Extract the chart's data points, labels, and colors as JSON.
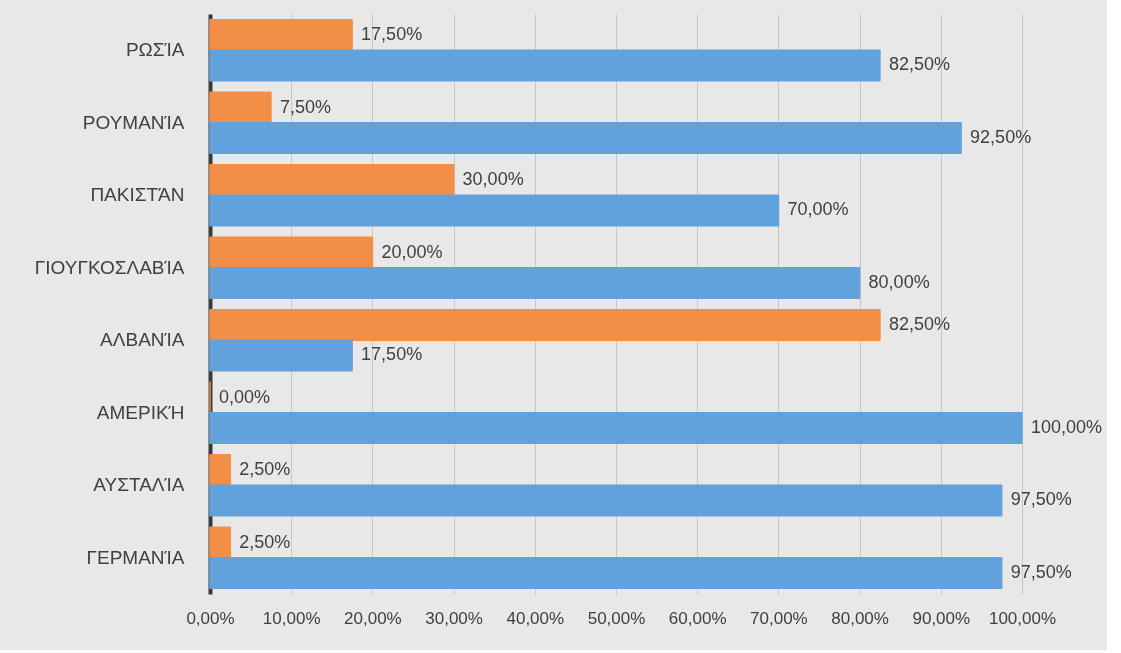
{
  "chart_data": {
    "type": "bar",
    "orientation": "horizontal",
    "categories": [
      "ΡΩΣΊΑ",
      "ΡΟΥΜΑΝΊΑ",
      "ΠΑΚΙΣΤΆΝ",
      "ΓΙΟΥΓΚΟΣΛΑΒΊΑ",
      "ΑΛΒΑΝΊΑ",
      "ΑΜΕΡΙΚΉ",
      "ΑΥΣΤΑΛΊΑ",
      "ΓΕΡΜΑΝΊΑ"
    ],
    "series": [
      {
        "color": "#f28e45",
        "values": [
          17.5,
          7.5,
          30,
          20,
          82.5,
          0,
          2.5,
          2.5
        ],
        "value_labels": [
          "17,50%",
          "7,50%",
          "30,00%",
          "20,00%",
          "82,50%",
          "0,00%",
          "2,50%",
          "2,50%"
        ]
      },
      {
        "color": "#62a2dc",
        "values": [
          82.5,
          92.5,
          70,
          80,
          17.5,
          100,
          97.5,
          97.5
        ],
        "value_labels": [
          "82,50%",
          "92,50%",
          "70,00%",
          "80,00%",
          "17,50%",
          "100,00%",
          "97,50%",
          "97,50%"
        ]
      }
    ],
    "xlim": [
      0,
      100
    ],
    "xticks": [
      {
        "value": 0,
        "label": "0,00%"
      },
      {
        "value": 10,
        "label": "10,00%"
      },
      {
        "value": 20,
        "label": "20,00%"
      },
      {
        "value": 30,
        "label": "30,00%"
      },
      {
        "value": 40,
        "label": "40,00%"
      },
      {
        "value": 50,
        "label": "50,00%"
      },
      {
        "value": 60,
        "label": "60,00%"
      },
      {
        "value": 70,
        "label": "70,00%"
      },
      {
        "value": 80,
        "label": "80,00%"
      },
      {
        "value": 90,
        "label": "90,00%"
      },
      {
        "value": 100,
        "label": "100,00%"
      }
    ],
    "grid": "x"
  }
}
